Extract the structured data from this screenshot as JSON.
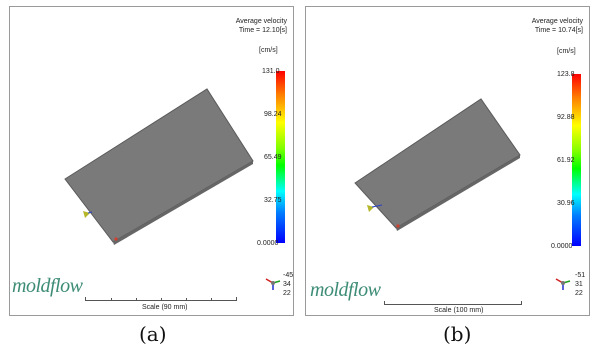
{
  "panels": [
    {
      "id": "a",
      "legend_title_line1": "Average velocity",
      "legend_title_line2": "Time = 12.10[s]",
      "unit": "[cm/s]",
      "ticks": [
        "131.0",
        "98.24",
        "65.49",
        "32.75",
        "0.0000"
      ],
      "brand": "moldflow",
      "scale_label": "Scale (90 mm)",
      "axis_numbers": [
        "-45",
        "34",
        "22"
      ],
      "caption": "(a)"
    },
    {
      "id": "b",
      "legend_title_line1": "Average velocity",
      "legend_title_line2": "Time = 10.74[s]",
      "unit": "[cm/s]",
      "ticks": [
        "123.8",
        "92.88",
        "61.92",
        "30.96",
        "0.0000"
      ],
      "brand": "moldflow",
      "scale_label": "Scale (100 mm)",
      "axis_numbers": [
        "-51",
        "31",
        "22"
      ],
      "caption": "(b)"
    }
  ],
  "colors": {
    "plate": "#7a7a7a",
    "plate_edge": "#5a5a5a",
    "brand": "#3d8c76"
  }
}
